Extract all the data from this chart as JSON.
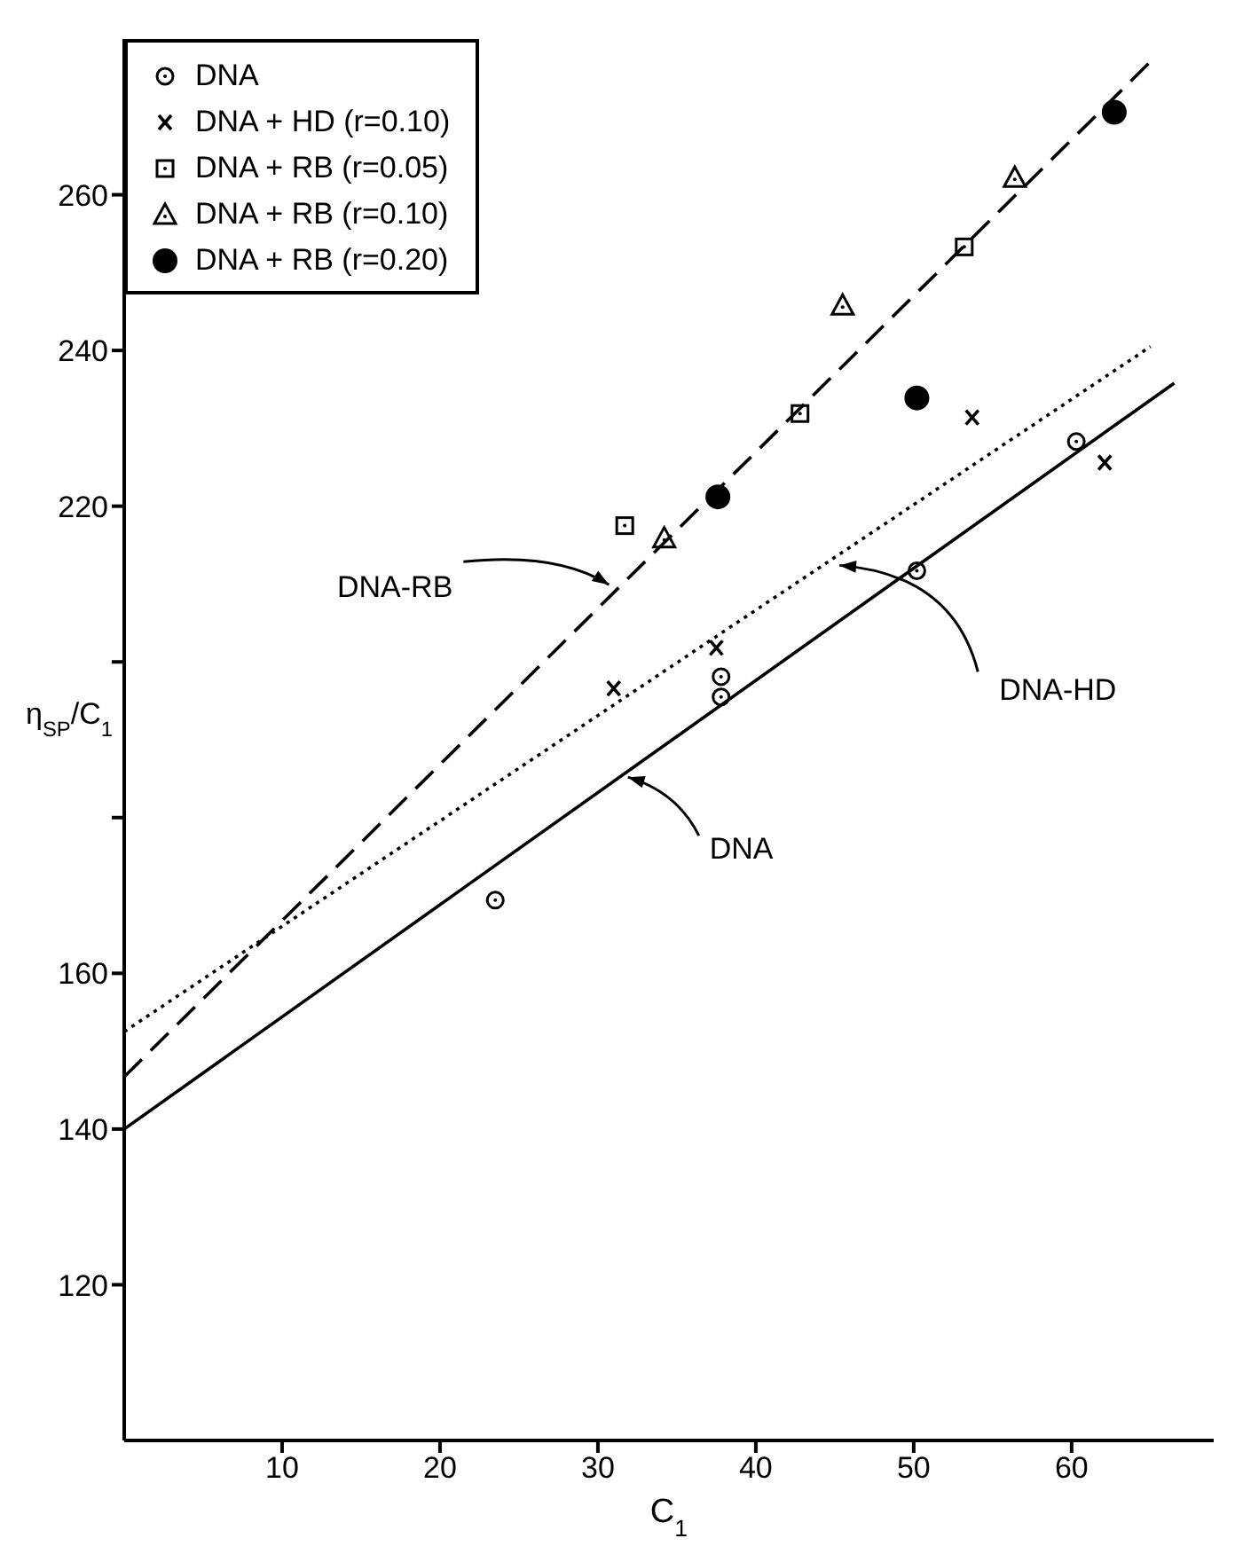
{
  "chart_data": {
    "type": "scatter",
    "xlabel": "C$_{1}$",
    "ylabel": "η$_{SP}$/C$_{1}$",
    "xlim": [
      0,
      69
    ],
    "ylim": [
      100,
      280
    ],
    "xticks": [
      10,
      20,
      30,
      40,
      50,
      60
    ],
    "yticks": [
      120,
      140,
      160,
      {
        "value": 180,
        "label": null
      },
      {
        "value": 200,
        "label": null
      },
      220,
      240,
      260
    ],
    "legend": "top left",
    "series": [
      {
        "name": "DNA",
        "marker": "circle-dot",
        "color": "#000000",
        "x": [
          23.5,
          37.8,
          37.8,
          50.2,
          60.3
        ],
        "values": [
          169.4,
          198.1,
          195.5,
          211.7,
          228.3
        ]
      },
      {
        "name": "DNA + HD (r=0.10)",
        "marker": "cross",
        "color": "#000000",
        "x": [
          31.0,
          37.5,
          53.7,
          62.1
        ],
        "values": [
          196.6,
          201.8,
          231.4,
          225.6
        ]
      },
      {
        "name": "DNA + RB (r=0.05)",
        "marker": "square",
        "color": "#000000",
        "x": [
          31.7,
          42.8,
          53.2
        ],
        "values": [
          217.5,
          231.9,
          253.3
        ]
      },
      {
        "name": "DNA + RB (r=0.10)",
        "marker": "triangle",
        "color": "#000000",
        "x": [
          34.2,
          45.5,
          56.4
        ],
        "values": [
          215.9,
          245.8,
          262.2
        ]
      },
      {
        "name": "DNA + RB (r=0.20)",
        "marker": "circle",
        "color": "#000000",
        "x": [
          37.6,
          50.2,
          62.7
        ],
        "values": [
          221.2,
          233.9,
          270.6
        ]
      },
      {
        "type": "line",
        "line_style": "solid",
        "marker": "none",
        "color": "#000000",
        "x": [
          0,
          66.5
        ],
        "values": [
          140,
          235.8
        ]
      },
      {
        "type": "line",
        "line_style": "dotted",
        "marker": "none",
        "color": "#000000",
        "x": [
          0,
          65
        ],
        "values": [
          152.5,
          240.5
        ]
      },
      {
        "type": "line",
        "line_style": "dashed",
        "marker": "none",
        "color": "#000000",
        "x": [
          0,
          64.9
        ],
        "values": [
          146.7,
          276.9
        ]
      }
    ],
    "annotations": [
      {
        "text": "DNA-RB",
        "x": 30.7,
        "y": 209.9
      },
      {
        "text": "DNA-HD",
        "x": 45.3,
        "y": 212.4
      },
      {
        "text": "DNA",
        "x": 31.9,
        "y": 185.2
      }
    ]
  }
}
